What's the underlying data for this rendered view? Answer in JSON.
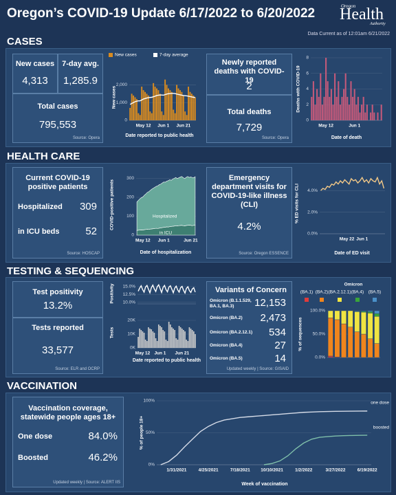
{
  "header": {
    "title": "Oregon’s COVID-19 Update 6/17/2022 to 6/20/2022",
    "logo": {
      "top": "Oregon",
      "main": "Health",
      "bottom": "Authority"
    },
    "data_current": "Data Current as of 12:01am 6/21/2022"
  },
  "sections": [
    "CASES",
    "HEALTH CARE",
    "TESTING & SEQUENCING",
    "VACCINATION"
  ],
  "cases": {
    "new_cases": {
      "label": "New cases",
      "value": "4,313"
    },
    "avg": {
      "label": "7-day avg.",
      "value": "1,285.9"
    },
    "total": {
      "label": "Total cases",
      "value": "795,553"
    },
    "source": "Source: Opera"
  },
  "deaths": {
    "new": {
      "label": "Newly reported deaths with COVID-19",
      "value": "2"
    },
    "total": {
      "label": "Total deaths",
      "value": "7,729"
    },
    "source": "Source: Opera"
  },
  "hospital": {
    "title": "Current COVID-19 positive patients",
    "rows": [
      [
        "Hospitalized",
        "309"
      ],
      [
        "in ICU beds",
        "52"
      ]
    ],
    "source": "Source: HOSCAP"
  },
  "ed": {
    "title": "Emergency department visits for COVID-19-like illness (CLI)",
    "value": "4.2%",
    "source": "Source: Oregon ESSENCE"
  },
  "testing": {
    "positivity": {
      "label": "Test positivity",
      "value": "13.2%"
    },
    "tests": {
      "label": "Tests reported",
      "value": "33,577"
    },
    "source": "Source: ELR and OCRP"
  },
  "variants": {
    "title": "Variants of Concern",
    "rows": [
      [
        "Omicron (B.1.1.529, BA.1, BA.3)",
        "12,153"
      ],
      [
        "Omicron (BA.2)",
        "2,473"
      ],
      [
        "Omicron (BA.2.12.1)",
        "534"
      ],
      [
        "Omicron (BA.4)",
        "27"
      ],
      [
        "Omicron (BA.5)",
        "14"
      ]
    ],
    "source": "Updated weekly | Source: GISAID"
  },
  "vaccination": {
    "title": "Vaccination coverage, statewide people ages 18+",
    "rows": [
      [
        "One dose",
        "84.0%"
      ],
      [
        "Boosted",
        "46.2%"
      ]
    ],
    "source": "Updated weekly | Source: ALERT IIS"
  },
  "chart_data": [
    {
      "type": "bar",
      "y_label": "New cases",
      "x_label": "Date reported to public health",
      "grid": true,
      "categories": [
        null,
        null,
        null,
        null,
        null,
        null,
        null,
        null,
        "May 12",
        null,
        null,
        null,
        null,
        null,
        null,
        null,
        null,
        null,
        null,
        null,
        "Jun 1",
        null,
        null,
        null,
        null,
        null,
        null,
        null,
        null,
        null,
        null,
        null,
        "Jun 21",
        null,
        null,
        null,
        null,
        null,
        null,
        null
      ],
      "ylim": [
        0,
        2600
      ],
      "yticks": [
        0,
        {
          "value": 1000,
          "label": "1,000"
        },
        {
          "value": 2000,
          "label": "2,000"
        }
      ],
      "series": [
        {
          "name": "New cases",
          "color": "#d98b1f",
          "values": [
            700,
            1500,
            1400,
            1300,
            1200,
            400,
            300,
            1900,
            1700,
            1600,
            1500,
            1400,
            500,
            400,
            2100,
            1900,
            1800,
            1700,
            1500,
            500,
            300,
            2300,
            2000,
            1800,
            1700,
            1600,
            600,
            400,
            2000,
            1800,
            1700,
            1600,
            1400,
            500,
            300,
            1900,
            1600,
            1500,
            1400,
            1300
          ]
        },
        {
          "name": "7-day average",
          "color": "#ffffff",
          "type": "line",
          "values": [
            900,
            950,
            1000,
            1050,
            1080,
            1100,
            1100,
            1150,
            1200,
            1230,
            1260,
            1280,
            1290,
            1300,
            1330,
            1360,
            1400,
            1420,
            1430,
            1430,
            1420,
            1450,
            1480,
            1500,
            1510,
            1520,
            1520,
            1510,
            1480,
            1460,
            1440,
            1420,
            1400,
            1390,
            1380,
            1360,
            1340,
            1320,
            1300,
            1290
          ]
        }
      ]
    },
    {
      "type": "bar",
      "y_label": "Deaths with COVID-19",
      "x_label": "Date of death",
      "grid": true,
      "categories": [
        null,
        null,
        null,
        null,
        null,
        null,
        null,
        null,
        "May 12",
        null,
        null,
        null,
        null,
        null,
        null,
        null,
        null,
        null,
        null,
        null,
        null,
        null,
        null,
        null,
        "Jun 1",
        null,
        null,
        null,
        null,
        null,
        null,
        null,
        null,
        null,
        null,
        null,
        null,
        null,
        null,
        null
      ],
      "ylim": [
        0,
        8
      ],
      "yticks": [
        0,
        2,
        4,
        6,
        8
      ],
      "series": [
        {
          "name": "Deaths",
          "color": "#c45a7a",
          "values": [
            3,
            5,
            2,
            4,
            3,
            6,
            2,
            3,
            8,
            5,
            3,
            4,
            2,
            6,
            3,
            5,
            2,
            3,
            4,
            6,
            3,
            2,
            5,
            3,
            4,
            2,
            3,
            1,
            2,
            3,
            1,
            2,
            0,
            1,
            2,
            1,
            0,
            1,
            0,
            2
          ]
        }
      ]
    },
    {
      "type": "area",
      "stacked": true,
      "y_label": "COVID-positive patients",
      "x_label": "Date of hospitalization",
      "grid": true,
      "categories": [
        null,
        null,
        null,
        null,
        "May 12",
        null,
        null,
        null,
        null,
        null,
        null,
        null,
        null,
        null,
        null,
        null,
        null,
        null,
        "Jun 1",
        null,
        null,
        null,
        null,
        null,
        null,
        null,
        null,
        null,
        null,
        null,
        null,
        null,
        null,
        null,
        null,
        null,
        "Jun 21",
        null,
        null,
        null
      ],
      "ylim": [
        0,
        320
      ],
      "yticks": [
        0,
        100,
        200,
        300
      ],
      "series": [
        {
          "name": "in ICU",
          "color": "#3e7f72",
          "values": [
            25,
            26,
            27,
            28,
            27,
            29,
            30,
            31,
            30,
            32,
            33,
            34,
            35,
            36,
            35,
            37,
            38,
            40,
            41,
            42,
            44,
            43,
            45,
            46,
            47,
            48,
            50,
            49,
            50,
            51,
            52,
            50,
            49,
            51,
            52,
            53,
            52,
            50,
            52,
            52
          ]
        },
        {
          "name": "Hospitalized",
          "color": "#68a99b",
          "values": [
            150,
            158,
            165,
            170,
            175,
            182,
            188,
            195,
            200,
            205,
            210,
            214,
            218,
            222,
            226,
            230,
            232,
            236,
            240,
            238,
            242,
            245,
            248,
            244,
            250,
            252,
            255,
            250,
            253,
            256,
            258,
            254,
            250,
            255,
            258,
            252,
            256,
            255,
            252,
            257
          ]
        }
      ]
    },
    {
      "type": "line",
      "y_label": "% ED visits for CLI",
      "x_label": "Date of ED visit",
      "grid": true,
      "categories": [
        null,
        null,
        null,
        null,
        null,
        null,
        null,
        null,
        null,
        null,
        null,
        null,
        "May 22",
        null,
        null,
        null,
        null,
        null,
        null,
        "Jun 1",
        null,
        null,
        null,
        null,
        null,
        null,
        null,
        null,
        null,
        null
      ],
      "ylim": [
        0,
        5.6
      ],
      "yticks": [
        {
          "value": 0,
          "label": "0.0%"
        },
        {
          "value": 2,
          "label": "2.0%"
        },
        {
          "value": 4,
          "label": "4.0%"
        }
      ],
      "series": [
        {
          "name": "ED visits",
          "color": "#f2c887",
          "values": [
            4.0,
            4.2,
            4.1,
            4.4,
            4.3,
            4.6,
            4.5,
            4.8,
            4.6,
            4.9,
            4.7,
            5.0,
            4.8,
            4.6,
            5.1,
            4.9,
            5.0,
            4.7,
            4.9,
            5.2,
            4.8,
            5.0,
            4.7,
            5.1,
            4.9,
            4.8,
            5.2,
            4.6,
            4.9,
            4.2
          ]
        }
      ]
    },
    {
      "type": "line",
      "y_label": "Positivity",
      "grid": true,
      "ylim": [
        9.5,
        16
      ],
      "yticks": [
        {
          "value": 10,
          "label": "10.0%"
        },
        {
          "value": 12.5,
          "label": "12.5%"
        },
        {
          "value": 15,
          "label": "15.0%"
        }
      ],
      "series": [
        {
          "name": "Positivity",
          "color": "#ffffff",
          "values": [
            13.5,
            14.5,
            15.2,
            14.0,
            13.2,
            14.8,
            15.3,
            14.1,
            13.0,
            14.6,
            15.4,
            14.2,
            13.4,
            14.9,
            15.5,
            14.3,
            13.1,
            14.7,
            15.3,
            14.0,
            13.3,
            14.8,
            15.2,
            14.1,
            13.0,
            14.5,
            15.1,
            13.9,
            13.2,
            14.6,
            15.0,
            13.8,
            12.9,
            14.4,
            14.9,
            13.7,
            13.1,
            14.2,
            14.6,
            13.2
          ]
        }
      ]
    },
    {
      "type": "bar",
      "y_label": "Tests",
      "x_label": "Date reported to public health",
      "grid": true,
      "categories": [
        null,
        null,
        null,
        "May 12",
        null,
        null,
        null,
        null,
        null,
        null,
        null,
        null,
        null,
        null,
        null,
        "Jun 1",
        null,
        null,
        null,
        null,
        null,
        null,
        null,
        null,
        null,
        null,
        null,
        null,
        null,
        null,
        "Jun 21",
        null,
        null,
        null,
        null,
        null,
        null,
        null,
        null,
        null
      ],
      "ylim": [
        0,
        22000
      ],
      "yticks": [
        {
          "value": 0,
          "label": "0K"
        },
        {
          "value": 10000,
          "label": "10K"
        },
        {
          "value": 20000,
          "label": "20K"
        }
      ],
      "series": [
        {
          "name": "Tests",
          "color": "#c9c9c9",
          "values": [
            8000,
            14000,
            13000,
            12000,
            11000,
            6000,
            5000,
            15000,
            14000,
            13500,
            12000,
            11000,
            7000,
            5000,
            17000,
            16000,
            15000,
            13000,
            12000,
            6000,
            5000,
            19000,
            17000,
            15000,
            14000,
            13000,
            7000,
            6000,
            16000,
            15000,
            14000,
            13000,
            12000,
            6000,
            5000,
            15000,
            14000,
            13000,
            12000,
            10000
          ]
        }
      ]
    },
    {
      "type": "bar",
      "stacked": true,
      "y_label": "% of sequences",
      "legend_title": "Omicron",
      "grid": true,
      "ylim": [
        0,
        100
      ],
      "yticks": [
        {
          "value": 0,
          "label": "0.0%"
        },
        {
          "value": 50,
          "label": "50.0%"
        },
        {
          "value": 100,
          "label": "100.0%"
        }
      ],
      "series": [
        {
          "name": "(BA.1)",
          "color": "#e03b3b",
          "values": [
            3,
            1,
            0,
            0,
            0,
            0,
            0,
            0
          ]
        },
        {
          "name": "(BA.2)",
          "color": "#f0851d",
          "values": [
            82,
            80,
            72,
            65,
            55,
            50,
            40,
            30
          ]
        },
        {
          "name": "(BA.2.12.1)",
          "color": "#f0e442",
          "values": [
            15,
            19,
            28,
            35,
            43,
            47,
            55,
            58
          ]
        },
        {
          "name": "(BA.4)",
          "color": "#3aa53a",
          "values": [
            0,
            0,
            0,
            0,
            1,
            2,
            3,
            6
          ]
        },
        {
          "name": "(BA.5)",
          "color": "#4a90c8",
          "values": [
            0,
            0,
            0,
            0,
            1,
            1,
            2,
            6
          ]
        }
      ]
    },
    {
      "type": "line",
      "y_label": "% of people 18+",
      "x_label": "Week of vaccination",
      "grid": true,
      "categories": [
        null,
        null,
        "1/31/2021",
        null,
        null,
        null,
        "4/25/2021",
        null,
        null,
        null,
        "7/18/2021",
        null,
        null,
        null,
        "10/10/2021",
        null,
        null,
        null,
        "1/2/2022",
        null,
        null,
        null,
        "3/27/2022",
        null,
        null,
        null,
        "6/19/2022"
      ],
      "ylim": [
        0,
        100
      ],
      "yticks": [
        {
          "value": 0,
          "label": "0%"
        },
        {
          "value": 50,
          "label": "50%"
        },
        {
          "value": 100,
          "label": "100%"
        }
      ],
      "series": [
        {
          "name": "one dose",
          "color": "#d6dce8",
          "values": [
            0,
            5,
            15,
            28,
            40,
            52,
            60,
            66,
            70,
            72,
            74,
            75,
            76,
            77,
            78,
            79,
            80,
            81,
            82,
            82.5,
            83,
            83.3,
            83.5,
            83.7,
            83.8,
            83.9,
            84
          ]
        },
        {
          "name": "boosted",
          "color": "#7fbfaa",
          "values": [
            null,
            null,
            null,
            null,
            null,
            null,
            null,
            null,
            null,
            null,
            null,
            null,
            null,
            0,
            2,
            6,
            14,
            25,
            34,
            40,
            43,
            44,
            45,
            45.5,
            45.8,
            46,
            46.2
          ]
        }
      ]
    }
  ]
}
